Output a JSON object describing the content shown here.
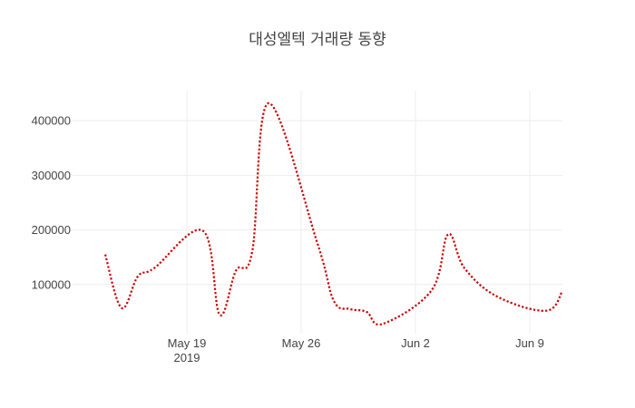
{
  "chart_data": {
    "type": "line",
    "title": "대성엘텍 거래량 동향",
    "xlabel": "",
    "ylabel": "",
    "x_range": [
      "2019-05-12",
      "2019-06-11"
    ],
    "ylim": [
      10000,
      455000
    ],
    "grid": true,
    "legend": "none",
    "line_color": "#cc0000",
    "line_style": "dotted",
    "x_ticks": [
      {
        "date": "2019-05-19",
        "label": "May 19",
        "sublabel": "2019"
      },
      {
        "date": "2019-05-26",
        "label": "May 26",
        "sublabel": ""
      },
      {
        "date": "2019-06-02",
        "label": "Jun 2",
        "sublabel": ""
      },
      {
        "date": "2019-06-09",
        "label": "Jun 9",
        "sublabel": ""
      }
    ],
    "y_ticks": [
      {
        "value": 100000,
        "label": "100000"
      },
      {
        "value": 200000,
        "label": "200000"
      },
      {
        "value": 300000,
        "label": "300000"
      },
      {
        "value": 400000,
        "label": "400000"
      }
    ],
    "series": [
      {
        "name": "거래량",
        "points": [
          {
            "date": "2019-05-14",
            "value": 155000
          },
          {
            "date": "2019-05-15",
            "value": 57000
          },
          {
            "date": "2019-05-16",
            "value": 115000
          },
          {
            "date": "2019-05-17",
            "value": 130000
          },
          {
            "date": "2019-05-20",
            "value": 198000
          },
          {
            "date": "2019-05-21",
            "value": 45000
          },
          {
            "date": "2019-05-22",
            "value": 125000
          },
          {
            "date": "2019-05-23",
            "value": 160000
          },
          {
            "date": "2019-05-24",
            "value": 432000
          },
          {
            "date": "2019-05-27",
            "value": 175000
          },
          {
            "date": "2019-05-28",
            "value": 70000
          },
          {
            "date": "2019-05-29",
            "value": 55000
          },
          {
            "date": "2019-05-30",
            "value": 50000
          },
          {
            "date": "2019-05-31",
            "value": 28000
          },
          {
            "date": "2019-06-03",
            "value": 90000
          },
          {
            "date": "2019-06-04",
            "value": 192000
          },
          {
            "date": "2019-06-05",
            "value": 130000
          },
          {
            "date": "2019-06-07",
            "value": 78000
          },
          {
            "date": "2019-06-10",
            "value": 52000
          },
          {
            "date": "2019-06-11",
            "value": 88000
          }
        ]
      }
    ]
  }
}
